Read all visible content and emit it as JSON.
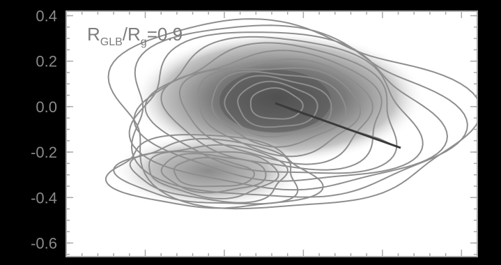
{
  "chart_data": {
    "type": "heatmap",
    "title": "",
    "xlabel": "",
    "ylabel": "",
    "y_ticks": [
      "0.4",
      "0.2",
      "0.0",
      "-0.2",
      "-0.4",
      "-0.6"
    ],
    "y_tick_values": [
      0.4,
      0.2,
      0.0,
      -0.2,
      -0.4,
      -0.6
    ],
    "ylim": [
      -0.66,
      0.42
    ],
    "x_ticks": [],
    "annotation": {
      "prefix": "R",
      "sub1": "GLB",
      "mid": "/R",
      "sub2": "g",
      "suffix": "=0.9"
    },
    "grid": false,
    "legend": "none",
    "colormap": "grayscale (white = low, dark grey = high)",
    "contour_color": "#8e8e8e",
    "background_color": "#000000"
  }
}
